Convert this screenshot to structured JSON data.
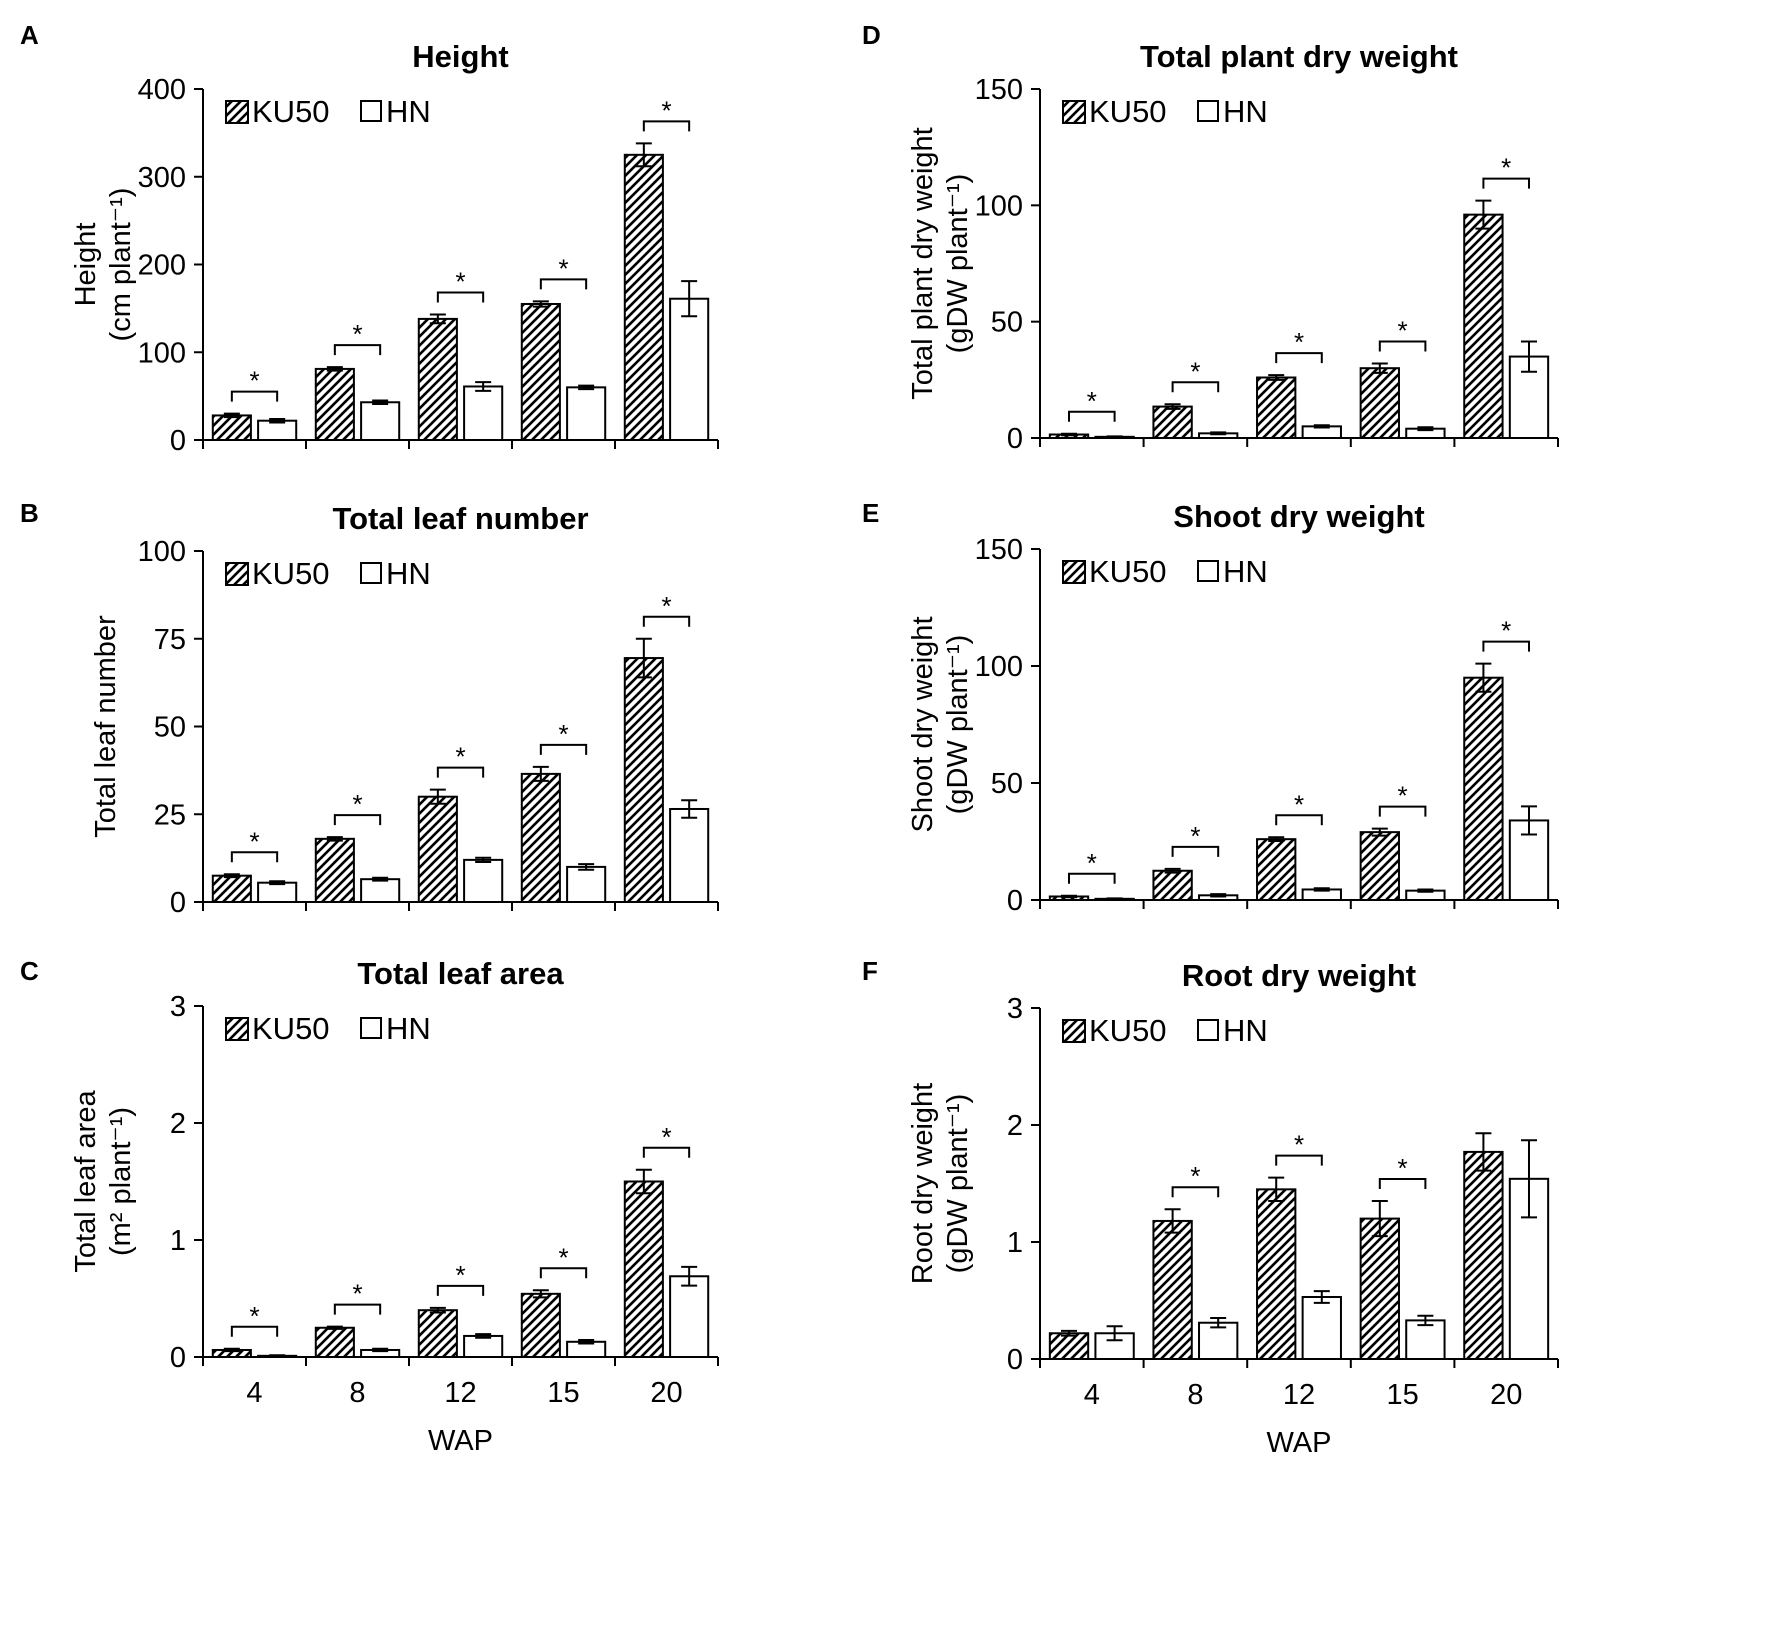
{
  "figure": {
    "series_names": [
      "KU50",
      "HN"
    ],
    "x_axis_label": "WAP"
  },
  "chart_data": [
    {
      "type": "bar",
      "panel": "A",
      "title": "Height",
      "ylabel_line1": "Height",
      "ylabel_line2": "(cm plant⁻¹)",
      "xlabel": "",
      "categories": [
        "4",
        "8",
        "12",
        "15",
        "20"
      ],
      "ylim": [
        0,
        400
      ],
      "yticks": [
        "0",
        "100",
        "200",
        "300",
        "400"
      ],
      "series": [
        {
          "name": "KU50",
          "values": [
            28,
            81,
            138,
            155,
            325
          ],
          "errors": [
            2,
            2,
            5,
            3,
            13
          ]
        },
        {
          "name": "HN",
          "values": [
            22,
            43,
            61,
            60,
            161
          ],
          "errors": [
            2,
            2,
            5,
            2,
            20
          ]
        }
      ],
      "significance": [
        "*",
        "*",
        "*",
        "*",
        "*"
      ],
      "legend": "top-left"
    },
    {
      "type": "bar",
      "panel": "B",
      "title": "Total leaf number",
      "ylabel_line1": "Total leaf number",
      "ylabel_line2": "",
      "xlabel": "",
      "categories": [
        "4",
        "8",
        "12",
        "15",
        "20"
      ],
      "ylim": [
        0,
        100
      ],
      "yticks": [
        "0",
        "25",
        "50",
        "75",
        "100"
      ],
      "series": [
        {
          "name": "KU50",
          "values": [
            7.5,
            18,
            30,
            36.5,
            69.5
          ],
          "errors": [
            0.4,
            0.5,
            2,
            2,
            5.5
          ]
        },
        {
          "name": "HN",
          "values": [
            5.5,
            6.5,
            12,
            10,
            26.5
          ],
          "errors": [
            0.4,
            0.4,
            0.6,
            0.8,
            2.5
          ]
        }
      ],
      "significance": [
        "*",
        "*",
        "*",
        "*",
        "*"
      ],
      "legend": "top-left"
    },
    {
      "type": "bar",
      "panel": "C",
      "title": "Total leaf area",
      "ylabel_line1": "Total leaf area",
      "ylabel_line2": "(m² plant⁻¹)",
      "xlabel": "WAP",
      "categories": [
        "4",
        "8",
        "12",
        "15",
        "20"
      ],
      "ylim": [
        0,
        3
      ],
      "yticks": [
        "0",
        "1",
        "2",
        "3"
      ],
      "series": [
        {
          "name": "KU50",
          "values": [
            0.06,
            0.25,
            0.4,
            0.54,
            1.5
          ],
          "errors": [
            0.01,
            0.01,
            0.02,
            0.03,
            0.1
          ]
        },
        {
          "name": "HN",
          "values": [
            0.01,
            0.06,
            0.18,
            0.13,
            0.69
          ],
          "errors": [
            0.005,
            0.01,
            0.015,
            0.015,
            0.08
          ]
        }
      ],
      "significance": [
        "*",
        "*",
        "*",
        "*",
        "*"
      ],
      "legend": "top-left"
    },
    {
      "type": "bar",
      "panel": "D",
      "title": "Total plant dry weight",
      "ylabel_line1": "Total plant dry weight",
      "ylabel_line2": "(gDW plant⁻¹)",
      "xlabel": "",
      "categories": [
        "4",
        "8",
        "12",
        "15",
        "20"
      ],
      "ylim": [
        0,
        150
      ],
      "yticks": [
        "0",
        "50",
        "100",
        "150"
      ],
      "series": [
        {
          "name": "KU50",
          "values": [
            1.5,
            13.5,
            26,
            30,
            96
          ],
          "errors": [
            0.3,
            1,
            1,
            2,
            6
          ]
        },
        {
          "name": "HN",
          "values": [
            0.5,
            2,
            5,
            4,
            35
          ],
          "errors": [
            0.2,
            0.4,
            0.5,
            0.6,
            6.5
          ]
        }
      ],
      "significance": [
        "*",
        "*",
        "*",
        "*",
        "*"
      ],
      "legend": "top-left"
    },
    {
      "type": "bar",
      "panel": "E",
      "title": "Shoot dry weight",
      "ylabel_line1": "Shoot dry weight",
      "ylabel_line2": "(gDW plant⁻¹)",
      "xlabel": "",
      "categories": [
        "4",
        "8",
        "12",
        "15",
        "20"
      ],
      "ylim": [
        0,
        150
      ],
      "yticks": [
        "0",
        "50",
        "100",
        "150"
      ],
      "series": [
        {
          "name": "KU50",
          "values": [
            1.5,
            12.5,
            26,
            29,
            95
          ],
          "errors": [
            0.3,
            0.8,
            0.8,
            1.5,
            6
          ]
        },
        {
          "name": "HN",
          "values": [
            0.5,
            2,
            4.5,
            4,
            34
          ],
          "errors": [
            0.2,
            0.5,
            0.5,
            0.5,
            6
          ]
        }
      ],
      "significance": [
        "*",
        "*",
        "*",
        "*",
        "*"
      ],
      "legend": "top-left"
    },
    {
      "type": "bar",
      "panel": "F",
      "title": "Root dry weight",
      "ylabel_line1": "Root dry weight",
      "ylabel_line2": "(gDW plant⁻¹)",
      "xlabel": "WAP",
      "categories": [
        "4",
        "8",
        "12",
        "15",
        "20"
      ],
      "ylim": [
        0,
        3
      ],
      "yticks": [
        "0",
        "1",
        "2",
        "3"
      ],
      "series": [
        {
          "name": "KU50",
          "values": [
            0.22,
            1.18,
            1.45,
            1.2,
            1.77
          ],
          "errors": [
            0.02,
            0.1,
            0.1,
            0.15,
            0.16
          ]
        },
        {
          "name": "HN",
          "values": [
            0.22,
            0.31,
            0.53,
            0.33,
            1.54
          ],
          "errors": [
            0.06,
            0.04,
            0.05,
            0.04,
            0.33
          ]
        }
      ],
      "significance": [
        "",
        "*",
        "*",
        "*",
        ""
      ],
      "legend": "top-left"
    }
  ]
}
